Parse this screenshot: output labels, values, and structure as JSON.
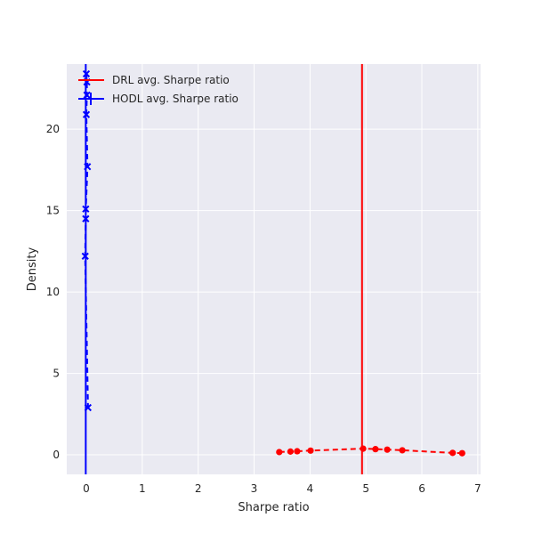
{
  "chart_data": {
    "type": "line",
    "title": "",
    "xlabel": "Sharpe ratio",
    "ylabel": "Density",
    "xlim": [
      -0.35,
      7.05
    ],
    "ylim": [
      -1.2,
      24.0
    ],
    "xticks": [
      0,
      1,
      2,
      3,
      4,
      5,
      6,
      7
    ],
    "yticks": [
      0,
      5,
      10,
      15,
      20
    ],
    "grid": true,
    "legend_position": "top-left",
    "series": [
      {
        "name": "DRL avg. Sharpe ratio",
        "kind": "vline",
        "x": 4.93,
        "color": "#ff0000"
      },
      {
        "name": "HODL avg. Sharpe ratio",
        "kind": "vline",
        "x": -0.01,
        "color": "#0000ff"
      },
      {
        "name": "",
        "kind": "density",
        "color": "#ff0000",
        "marker": "circle",
        "linestyle": "dashed",
        "points": [
          [
            3.45,
            0.17
          ],
          [
            3.65,
            0.2
          ],
          [
            3.77,
            0.22
          ],
          [
            4.01,
            0.26
          ],
          [
            4.95,
            0.38
          ],
          [
            5.17,
            0.35
          ],
          [
            5.38,
            0.32
          ],
          [
            5.65,
            0.28
          ],
          [
            6.55,
            0.12
          ],
          [
            6.72,
            0.1
          ]
        ]
      },
      {
        "name": "",
        "kind": "density",
        "color": "#0000ff",
        "marker": "x",
        "linestyle": "dashed",
        "points": [
          [
            0.0,
            23.4
          ],
          [
            0.01,
            22.9
          ],
          [
            0.01,
            22.1
          ],
          [
            0.0,
            20.9
          ],
          [
            0.02,
            17.7
          ],
          [
            -0.01,
            15.1
          ],
          [
            -0.01,
            14.5
          ],
          [
            -0.02,
            12.2
          ],
          [
            0.03,
            2.9
          ]
        ]
      }
    ]
  }
}
